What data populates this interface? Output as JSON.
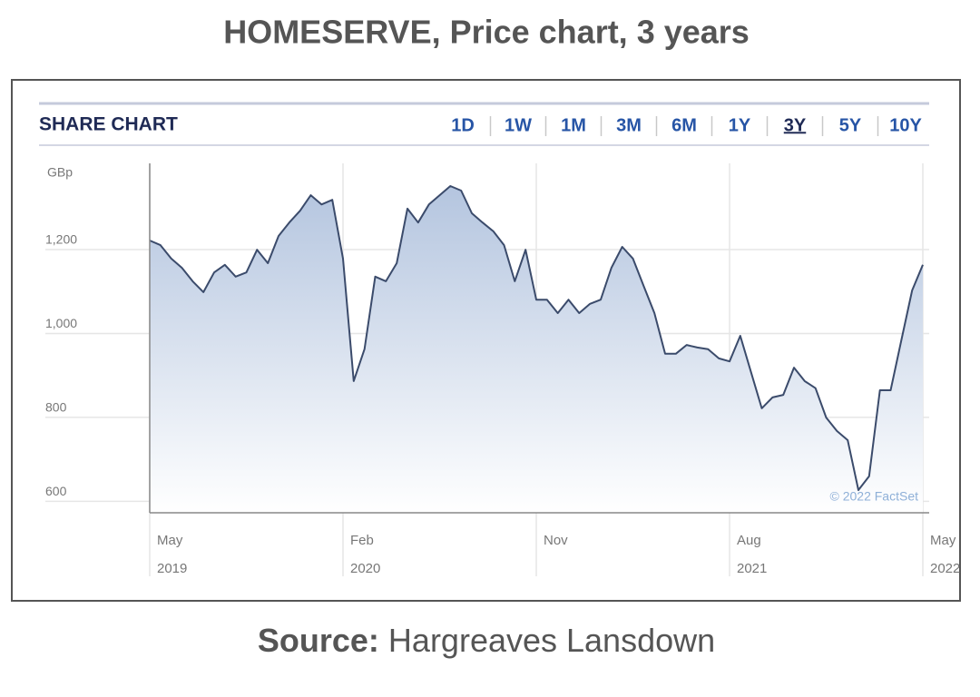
{
  "chart_data": {
    "type": "area",
    "title": "HOMESERVE, Price chart, 3 years",
    "header": "SHARE CHART",
    "range_buttons": [
      "1D",
      "1W",
      "1M",
      "3M",
      "6M",
      "1Y",
      "3Y",
      "5Y",
      "10Y"
    ],
    "selected_range": "3Y",
    "y_unit": "GBp",
    "attribution": "© 2022 FactSet",
    "color": "#3b4b6b",
    "grid": true,
    "ylim": [
      551,
      1384
    ],
    "yticks": [
      {
        "value": 600,
        "label": "600"
      },
      {
        "value": 800,
        "label": "800"
      },
      {
        "value": 1000,
        "label": "1,000"
      },
      {
        "value": 1200,
        "label": "1,200"
      }
    ],
    "categories": [
      "May 2019",
      null,
      null,
      null,
      null,
      null,
      null,
      null,
      null,
      null,
      null,
      null,
      null,
      null,
      null,
      null,
      null,
      null,
      "Feb 2020",
      null,
      null,
      null,
      null,
      null,
      null,
      null,
      null,
      null,
      null,
      null,
      null,
      null,
      null,
      null,
      null,
      null,
      "Nov",
      null,
      null,
      null,
      null,
      null,
      null,
      null,
      null,
      null,
      null,
      null,
      null,
      null,
      null,
      null,
      null,
      null,
      "Aug 2021",
      null,
      null,
      null,
      null,
      null,
      null,
      null,
      null,
      null,
      null,
      null,
      null,
      null,
      null,
      null,
      null,
      null,
      "May 2022"
    ],
    "values": [
      1200,
      1189,
      1157,
      1135,
      1103,
      1077,
      1124,
      1142,
      1114,
      1124,
      1178,
      1146,
      1211,
      1243,
      1271,
      1308,
      1286,
      1297,
      1157,
      865,
      941,
      1114,
      1103,
      1146,
      1276,
      1243,
      1286,
      1308,
      1330,
      1319,
      1265,
      1243,
      1222,
      1189,
      1103,
      1178,
      1059,
      1059,
      1027,
      1059,
      1027,
      1049,
      1059,
      1135,
      1185,
      1157,
      1092,
      1027,
      930,
      930,
      951,
      945,
      941,
      919,
      912,
      973,
      886,
      800,
      826,
      832,
      897,
      865,
      848,
      778,
      746,
      724,
      605,
      638,
      843,
      843,
      962,
      1081,
      1142
    ]
  },
  "source": {
    "label": "Source:",
    "text": "Hargreaves Lansdown"
  }
}
